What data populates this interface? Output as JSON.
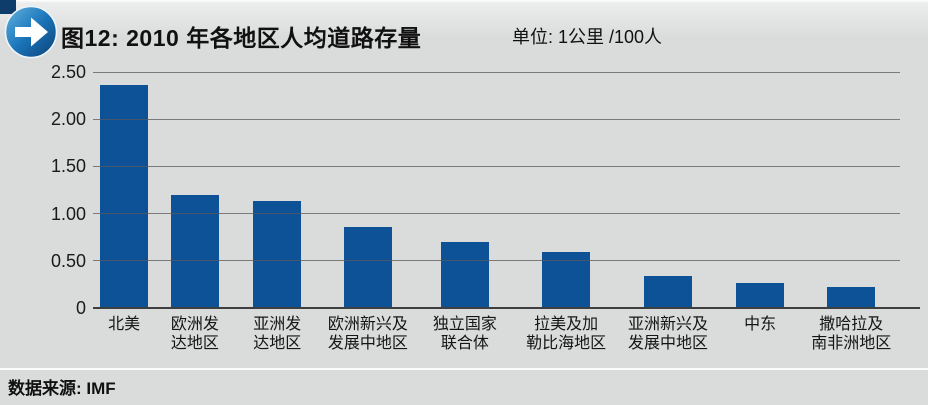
{
  "header": {
    "title": "图12: 2010 年各地区人均道路存量",
    "unit_label": "单位: 1公里 /100人",
    "icon": "arrow-right-circle-icon"
  },
  "chart_data": {
    "type": "bar",
    "title": "2010 年各地区人均道路存量",
    "unit": "1公里 /100人",
    "categories": [
      "北美",
      "欧洲发达地区",
      "亚洲发达地区",
      "欧洲新兴及发展中地区",
      "独立国家联合体",
      "拉美及加勒比海地区",
      "亚洲新兴及发展中地区",
      "中东",
      "撒哈拉及南非洲地区"
    ],
    "category_lines": [
      [
        "北美"
      ],
      [
        "欧洲发",
        "达地区"
      ],
      [
        "亚洲发",
        "达地区"
      ],
      [
        "欧洲新兴及",
        "发展中地区"
      ],
      [
        "独立国家",
        "联合体"
      ],
      [
        "拉美及加",
        "勒比海地区"
      ],
      [
        "亚洲新兴及",
        "发展中地区"
      ],
      [
        "中东"
      ],
      [
        "撒哈拉及",
        "南非洲地区"
      ]
    ],
    "values": [
      2.36,
      1.2,
      1.13,
      0.86,
      0.7,
      0.59,
      0.34,
      0.26,
      0.22
    ],
    "xlabel": "",
    "ylabel": "",
    "ylim": [
      0,
      2.5
    ],
    "yticks": [
      "2.50",
      "2.00",
      "1.50",
      "1.00",
      "0.50",
      "0"
    ],
    "ytick_values": [
      2.5,
      2.0,
      1.5,
      1.0,
      0.5,
      0
    ],
    "grid": true,
    "gridlines_over_bars": true,
    "legend": false,
    "bar_color": "#0d5296",
    "column_weights": [
      64,
      81,
      88,
      98,
      101,
      107,
      102,
      87,
      100
    ]
  },
  "footer": {
    "source_label": "数据来源: IMF"
  },
  "colors": {
    "background": "#dadbdb",
    "bar": "#0d5296",
    "gridline": "#5a5a5a",
    "axis_line": "#3e3f40",
    "corner_navy": "#0e3c6b",
    "icon_blue_light": "#62b4e0",
    "icon_blue_mid": "#1b75ba",
    "icon_blue_dark": "#0b4076"
  }
}
